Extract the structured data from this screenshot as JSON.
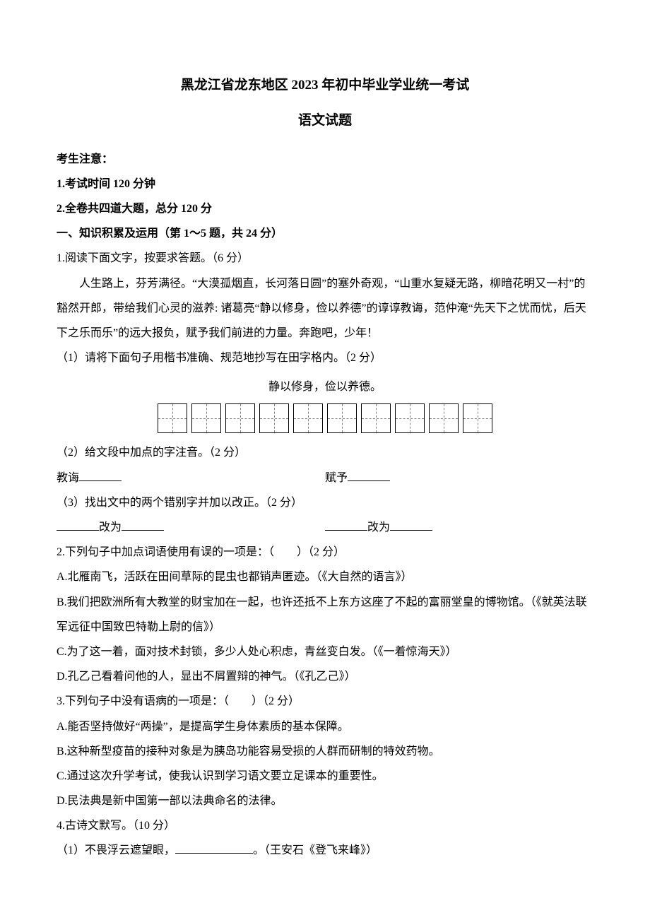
{
  "header": {
    "title_main": "黑龙江省龙东地区 2023 年初中毕业学业统一考试",
    "title_sub": "语文试题"
  },
  "notices": {
    "label": "考生注意：",
    "line1": "1.考试时间 120 分钟",
    "line2": "2.全卷共四道大题，总分 120 分"
  },
  "section1": {
    "header": "一、知识积累及运用（第 1～5 题，共 24 分）",
    "q1": {
      "stem": "1.阅读下面文字，按要求答题。（6 分）",
      "passage": "人生路上，芬芳满径。“大漠孤烟直，长河落日圆”的塞外奇观，“山重水复疑无路，柳暗花明又一村”的豁然开郎，带给我们心灵的滋养: 诸葛亮“静以修身，俭以养德”的谆谆教诲，范仲淹“先天下之忧而忧，后天下之乐而乐”的远大报负，赋予我们前进的力量。奔跑吧，少年！",
      "sub1": "（1）请将下面句子用楷书准确、规范地抄写在田字格内。（2 分）",
      "copy_text": "静以修身，俭以养德。",
      "sub2": "（2）给文段中加点的字注音。（2 分）",
      "pron_left": "教诲",
      "pron_right": "赋予",
      "sub3": "（3）找出文中的两个错别字并加以改正。（2 分）",
      "correction_word": "改为"
    },
    "q2": {
      "stem": "2.下列句子中加点词语使用有误的一项是：（　　）（2 分）",
      "optA": "A.北雁南飞，活跃在田间草际的昆虫也都销声匿迹。（《大自然的语言》）",
      "optB": "B.我们把欧洲所有大教堂的财宝加在一起，也许还抵不上东方这座了不起的富丽堂皇的博物馆。（《就英法联军远征中国致巴特勒上尉的信》）",
      "optC": "C.为了这一着，面对技术封锁，多少人处心积虑，青丝变白发。（《一着惊海天》）",
      "optD": "D.孔乙己看着问他的人，显出不屑置辩的神气。（《孔乙己》）"
    },
    "q3": {
      "stem": "3.下列句子中没有语病的一项是：（　　）（2 分）",
      "optA": "A.能否坚持做好“两操”，是提高学生身体素质的基本保障。",
      "optB": "B.这种新型疫苗的接种对象是为胰岛功能容易受损的人群而研制的特效药物。",
      "optC": "C.通过这次升学考试，使我认识到学习语文要立足课本的重要性。",
      "optD": "D.民法典是新中国第一部以法典命名的法律。"
    },
    "q4": {
      "stem": "4.古诗文默写。（10 分）",
      "sub1_pre": "（1）不畏浮云遮望眼，",
      "sub1_post": "。（王安石《登飞来峰》）"
    }
  },
  "layout": {
    "grid_cells": 10
  }
}
